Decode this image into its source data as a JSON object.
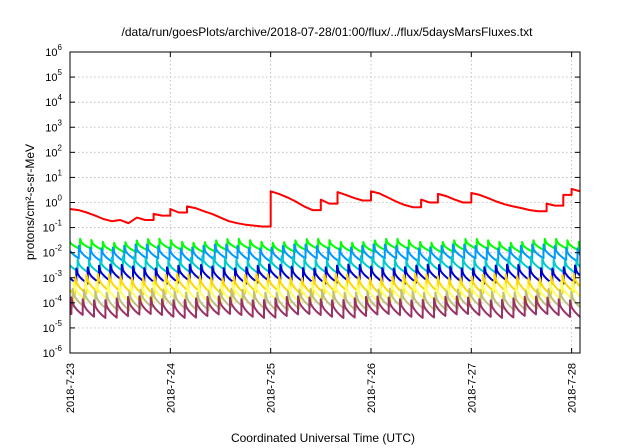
{
  "chart_data": {
    "type": "line",
    "title": "/data/run/goesPlots/archive/2018-07-28/01:00/flux/../flux/5daysMarsFluxes.txt",
    "xlabel": "Coordinated Universal Time (UTC)",
    "ylabel": "protons/cm²-s-sr-MeV",
    "yscale": "log",
    "ylim": [
      1e-06,
      1000000
    ],
    "xlim": [
      "2018-07-23",
      "2018-07-28 02:00"
    ],
    "x_ticks": [
      "2018-7-23",
      "2018-7-24",
      "2018-7-25",
      "2018-7-26",
      "2018-7-27",
      "2018-7-28"
    ],
    "y_ticks": [
      {
        "base": "10",
        "exp": "-6"
      },
      {
        "base": "10",
        "exp": "-5"
      },
      {
        "base": "10",
        "exp": "-4"
      },
      {
        "base": "10",
        "exp": "-3"
      },
      {
        "base": "10",
        "exp": "-2"
      },
      {
        "base": "10",
        "exp": "-1"
      },
      {
        "base": "10",
        "exp": "0"
      },
      {
        "base": "10",
        "exp": "1"
      },
      {
        "base": "10",
        "exp": "2"
      },
      {
        "base": "10",
        "exp": "3"
      },
      {
        "base": "10",
        "exp": "4"
      },
      {
        "base": "10",
        "exp": "5"
      },
      {
        "base": "10",
        "exp": "6"
      }
    ],
    "grid": true,
    "legend": "none",
    "series": [
      {
        "color": "#ff0000",
        "style": "stepped",
        "x": [
          "2018-07-23 00:00",
          "2018-07-23 02:00",
          "2018-07-23 04:00",
          "2018-07-23 06:00",
          "2018-07-23 08:00",
          "2018-07-23 10:00",
          "2018-07-23 12:00",
          "2018-07-23 14:00",
          "2018-07-23 16:00",
          "2018-07-23 18:00",
          "2018-07-23 20:00",
          "2018-07-23 22:00",
          "2018-07-24 00:00",
          "2018-07-24 02:00",
          "2018-07-24 04:00",
          "2018-07-24 06:00",
          "2018-07-24 08:00",
          "2018-07-24 10:00",
          "2018-07-24 12:00",
          "2018-07-24 14:00",
          "2018-07-24 16:00",
          "2018-07-24 18:00",
          "2018-07-24 20:00",
          "2018-07-24 22:00",
          "2018-07-25 00:00",
          "2018-07-25 02:00",
          "2018-07-25 04:00",
          "2018-07-25 06:00",
          "2018-07-25 08:00",
          "2018-07-25 10:00",
          "2018-07-25 12:00",
          "2018-07-25 14:00",
          "2018-07-25 16:00",
          "2018-07-25 18:00",
          "2018-07-25 20:00",
          "2018-07-25 22:00",
          "2018-07-26 00:00",
          "2018-07-26 02:00",
          "2018-07-26 04:00",
          "2018-07-26 06:00",
          "2018-07-26 08:00",
          "2018-07-26 10:00",
          "2018-07-26 12:00",
          "2018-07-26 14:00",
          "2018-07-26 16:00",
          "2018-07-26 18:00",
          "2018-07-26 20:00",
          "2018-07-26 22:00",
          "2018-07-27 00:00",
          "2018-07-27 02:00",
          "2018-07-27 04:00",
          "2018-07-27 06:00",
          "2018-07-27 08:00",
          "2018-07-27 10:00",
          "2018-07-27 12:00",
          "2018-07-27 14:00",
          "2018-07-27 16:00",
          "2018-07-27 18:00",
          "2018-07-27 20:00",
          "2018-07-27 22:00",
          "2018-07-28 00:00",
          "2018-07-28 02:00"
        ],
        "values": [
          0.55,
          0.5,
          0.4,
          0.3,
          0.22,
          0.18,
          0.2,
          0.15,
          0.25,
          0.2,
          0.35,
          0.3,
          0.55,
          0.4,
          0.7,
          0.6,
          0.45,
          0.35,
          0.25,
          0.18,
          0.15,
          0.13,
          0.12,
          0.11,
          2.8,
          2.2,
          1.6,
          1.1,
          0.7,
          0.5,
          1.3,
          0.9,
          2.6,
          2.0,
          1.5,
          1.2,
          2.8,
          2.3,
          1.6,
          1.1,
          0.8,
          0.65,
          1.3,
          1.0,
          2.2,
          1.8,
          1.3,
          1.0,
          2.4,
          2.0,
          1.5,
          1.1,
          0.85,
          0.7,
          0.6,
          0.5,
          0.45,
          0.9,
          0.75,
          2.0,
          3.5,
          2.8
        ]
      },
      {
        "color": "#00ff00",
        "style": "sawtooth",
        "x_start": "2018-07-23 00:00",
        "x_end": "2018-07-28 02:00",
        "cycles": 45,
        "peak": 0.03,
        "trough": 0.012
      },
      {
        "color": "#0099ff",
        "style": "sawtooth",
        "x_start": "2018-07-23 00:00",
        "x_end": "2018-07-28 02:00",
        "cycles": 45,
        "peak": 0.018,
        "trough": 0.005
      },
      {
        "color": "#00cccc",
        "style": "sawtooth",
        "x_start": "2018-07-23 00:00",
        "x_end": "2018-07-28 02:00",
        "cycles": 45,
        "peak": 0.006,
        "trough": 0.0018
      },
      {
        "color": "#0000cc",
        "style": "sawtooth",
        "x_start": "2018-07-23 00:00",
        "x_end": "2018-07-28 02:00",
        "cycles": 45,
        "peak": 0.0028,
        "trough": 0.0007
      },
      {
        "color": "#ffd700",
        "style": "sawtooth",
        "x_start": "2018-07-23 00:00",
        "x_end": "2018-07-28 02:00",
        "cycles": 45,
        "peak": 0.0012,
        "trough": 0.00025
      },
      {
        "color": "#ffff66",
        "style": "sawtooth",
        "x_start": "2018-07-23 00:00",
        "x_end": "2018-07-28 02:00",
        "cycles": 45,
        "peak": 0.0006,
        "trough": 0.00012
      },
      {
        "color": "#bfbf80",
        "style": "sawtooth",
        "x_start": "2018-07-23 00:00",
        "x_end": "2018-07-28 02:00",
        "cycles": 45,
        "peak": 0.0003,
        "trough": 6e-05
      },
      {
        "color": "#993366",
        "style": "sawtooth",
        "x_start": "2018-07-23 00:00",
        "x_end": "2018-07-28 02:00",
        "cycles": 45,
        "peak": 0.00015,
        "trough": 3e-05
      }
    ]
  }
}
